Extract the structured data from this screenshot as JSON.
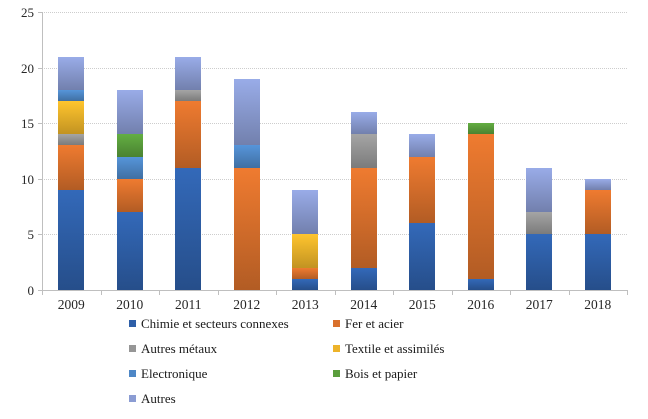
{
  "chart_data": {
    "type": "bar",
    "stacked": true,
    "title": "",
    "xlabel": "",
    "ylabel": "",
    "categories": [
      "2009",
      "2010",
      "2011",
      "2012",
      "2013",
      "2014",
      "2015",
      "2016",
      "2017",
      "2018"
    ],
    "series": [
      {
        "name": "Chimie et secteurs connexes",
        "color": "#2E5FA8",
        "values": [
          9,
          7,
          11,
          0,
          1,
          2,
          6,
          1,
          5,
          5
        ]
      },
      {
        "name": "Fer et acier",
        "color": "#D9702C",
        "values": [
          4,
          3,
          6,
          11,
          1,
          9,
          6,
          13,
          0,
          4
        ]
      },
      {
        "name": "Autres métaux",
        "color": "#969696",
        "values": [
          1,
          0,
          1,
          0,
          0,
          3,
          0,
          0,
          2,
          0
        ]
      },
      {
        "name": "Textile et assimilés",
        "color": "#EDB32A",
        "values": [
          3,
          0,
          0,
          0,
          3,
          0,
          0,
          0,
          0,
          0
        ]
      },
      {
        "name": "Electronique",
        "color": "#4E87C6",
        "values": [
          1,
          2,
          0,
          2,
          0,
          0,
          0,
          0,
          0,
          0
        ]
      },
      {
        "name": "Bois et papier",
        "color": "#5A9E3C",
        "values": [
          0,
          2,
          0,
          0,
          0,
          0,
          0,
          1,
          0,
          0
        ]
      },
      {
        "name": "Autres",
        "color": "#8B9CD3",
        "values": [
          3,
          4,
          3,
          6,
          4,
          2,
          2,
          0,
          4,
          1
        ]
      }
    ],
    "totals": [
      21,
      18,
      21,
      19,
      9,
      16,
      14,
      15,
      11,
      10
    ],
    "ylim": [
      0,
      25
    ],
    "y_ticks": [
      "0",
      "5",
      "10",
      "15",
      "20",
      "25"
    ],
    "grid": "horizontal-dotted",
    "legend_position": "bottom-two-columns",
    "axis_color": "#bfbfbf",
    "gridline_color": "#cdcdcd",
    "text_color": "#262626"
  }
}
